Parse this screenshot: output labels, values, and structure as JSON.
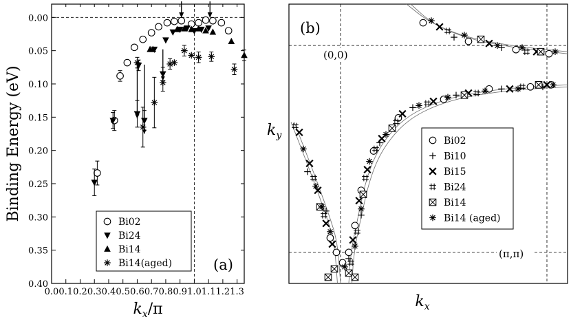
{
  "chart_data": [
    {
      "panel": "a",
      "type": "scatter",
      "panel_label": "(a)",
      "xlabel_main": "k",
      "xlabel_sub": "x",
      "xlabel_tail": "/π",
      "ylabel": "Binding Energy (eV)",
      "xlim": [
        0.0,
        1.35
      ],
      "ylim": [
        0.4,
        -0.02
      ],
      "x_ticks": [
        "0.0",
        "0.1",
        "0.2",
        "0.3",
        "0.4",
        "0.5",
        "0.6",
        "0.7",
        "0.8",
        "0.9",
        "1.0",
        "1.1",
        "1.2",
        "1.3"
      ],
      "y_ticks": [
        "0.00",
        "0.05",
        "0.10",
        "0.15",
        "0.20",
        "0.25",
        "0.30",
        "0.35",
        "0.40"
      ],
      "reference_lines": {
        "horizontal_y": 0.0,
        "vertical_x": 1.0
      },
      "arrows_at_x": [
        0.91,
        1.11
      ],
      "connectors": [
        {
          "x": 0.6,
          "y1": 0.071,
          "y2": 0.152
        },
        {
          "x": 0.65,
          "y1": 0.071,
          "y2": 0.175
        },
        {
          "x": 0.78,
          "y1": 0.048,
          "y2": 0.095
        }
      ],
      "legend": [
        "Bi02",
        "Bi24",
        "Bi14",
        "Bi14(aged)"
      ],
      "series": [
        {
          "name": "Bi02",
          "marker": "open-circle",
          "points": [
            [
              0.32,
              0.234
            ],
            [
              0.44,
              0.155
            ],
            [
              0.48,
              0.088
            ],
            [
              0.53,
              0.068
            ],
            [
              0.58,
              0.045
            ],
            [
              0.64,
              0.033
            ],
            [
              0.7,
              0.023
            ],
            [
              0.75,
              0.014
            ],
            [
              0.81,
              0.008
            ],
            [
              0.86,
              0.006
            ],
            [
              0.91,
              0.005
            ],
            [
              0.98,
              0.01
            ],
            [
              1.03,
              0.008
            ],
            [
              1.08,
              0.004
            ],
            [
              1.13,
              0.005
            ],
            [
              1.19,
              0.008
            ],
            [
              1.24,
              0.02
            ]
          ],
          "errors": [
            0.018,
            0.015,
            0.008,
            0,
            0,
            0,
            0,
            0,
            0,
            0,
            0,
            0,
            0,
            0,
            0,
            0,
            0
          ]
        },
        {
          "name": "Bi24",
          "marker": "down-triangle",
          "points": [
            [
              0.3,
              0.248
            ],
            [
              0.43,
              0.155
            ],
            [
              0.6,
              0.145
            ],
            [
              0.61,
              0.072
            ],
            [
              0.65,
              0.155
            ],
            [
              0.72,
              0.048
            ],
            [
              0.78,
              0.085
            ],
            [
              0.8,
              0.034
            ],
            [
              0.85,
              0.022
            ],
            [
              0.9,
              0.018
            ],
            [
              0.95,
              0.016
            ],
            [
              1.0,
              0.02
            ],
            [
              1.05,
              0.018
            ],
            [
              1.1,
              0.016
            ]
          ],
          "errors": [
            0.02,
            0.012,
            0.02,
            0.008,
            0.015,
            0,
            0.01,
            0,
            0,
            0,
            0,
            0,
            0,
            0
          ]
        },
        {
          "name": "Bi14",
          "marker": "up-triangle",
          "points": [
            [
              0.69,
              0.048
            ],
            [
              0.71,
              0.048
            ],
            [
              0.88,
              0.018
            ],
            [
              0.93,
              0.017
            ],
            [
              0.98,
              0.018
            ],
            [
              1.03,
              0.017
            ],
            [
              1.08,
              0.02
            ],
            [
              1.13,
              0.022
            ],
            [
              1.26,
              0.036
            ],
            [
              1.35,
              0.057
            ]
          ],
          "errors": [
            0,
            0,
            0,
            0,
            0,
            0,
            0,
            0,
            0,
            0.008
          ]
        },
        {
          "name": "Bi14(aged)",
          "marker": "asterisk",
          "points": [
            [
              0.6,
              0.068
            ],
            [
              0.64,
              0.165
            ],
            [
              0.72,
              0.128
            ],
            [
              0.78,
              0.098
            ],
            [
              0.83,
              0.07
            ],
            [
              0.86,
              0.068
            ],
            [
              0.93,
              0.05
            ],
            [
              0.98,
              0.057
            ],
            [
              1.03,
              0.06
            ],
            [
              1.12,
              0.059
            ],
            [
              1.28,
              0.078
            ]
          ],
          "errors": [
            0.008,
            0.03,
            0.038,
            0.013,
            0.008,
            0,
            0.008,
            0,
            0.008,
            0.007,
            0.008
          ]
        }
      ]
    },
    {
      "panel": "b",
      "type": "scatter",
      "panel_label": "(b)",
      "xlabel_main": "k",
      "xlabel_sub": "x",
      "ylabel_main": "k",
      "ylabel_sub": "y",
      "corner_labels": [
        "(0,0)",
        "(π,π)"
      ],
      "note": "Fermi surface map; axes run from (0,0) to (π,π) in units of π/a, no numeric ticks printed",
      "xlim": [
        -0.25,
        1.1
      ],
      "ylim": [
        -0.15,
        1.2
      ],
      "legend": [
        "Bi02",
        "Bi10",
        "Bi15",
        "Bi24",
        "Bi14",
        "Bi14 (aged)"
      ],
      "series": [
        {
          "name": "Bi02",
          "marker": "open-circle",
          "points": [
            [
              -0.05,
              0.07
            ],
            [
              -0.02,
              0.0
            ],
            [
              0.01,
              -0.05
            ],
            [
              0.04,
              0.0
            ],
            [
              0.07,
              0.13
            ],
            [
              0.1,
              0.3
            ],
            [
              0.16,
              0.49
            ],
            [
              0.28,
              0.65
            ],
            [
              0.5,
              0.74
            ],
            [
              0.72,
              0.79
            ],
            [
              0.92,
              0.8
            ],
            [
              1.02,
              0.81
            ],
            [
              0.4,
              1.11
            ],
            [
              0.62,
              1.02
            ],
            [
              0.85,
              0.98
            ],
            [
              1.01,
              0.96
            ]
          ]
        },
        {
          "name": "Bi10",
          "marker": "plus",
          "points": [
            [
              -0.16,
              0.39
            ],
            [
              -0.07,
              0.2
            ],
            [
              0.04,
              -0.03
            ],
            [
              0.1,
              0.18
            ],
            [
              0.19,
              0.53
            ],
            [
              0.35,
              0.7
            ],
            [
              0.56,
              0.76
            ],
            [
              0.78,
              0.79
            ],
            [
              0.98,
              0.8
            ],
            [
              0.55,
              1.04
            ],
            [
              0.78,
              0.99
            ]
          ]
        },
        {
          "name": "Bi15",
          "marker": "x",
          "points": [
            [
              -0.2,
              0.58
            ],
            [
              -0.15,
              0.43
            ],
            [
              -0.11,
              0.3
            ],
            [
              -0.07,
              0.14
            ],
            [
              -0.04,
              0.04
            ],
            [
              0.06,
              0.06
            ],
            [
              0.09,
              0.25
            ],
            [
              0.13,
              0.4
            ],
            [
              0.2,
              0.55
            ],
            [
              0.3,
              0.67
            ],
            [
              0.45,
              0.73
            ],
            [
              0.62,
              0.77
            ],
            [
              0.82,
              0.79
            ],
            [
              1.0,
              0.81
            ],
            [
              0.48,
              1.09
            ],
            [
              0.72,
              1.01
            ],
            [
              0.95,
              0.97
            ]
          ]
        },
        {
          "name": "Bi24",
          "marker": "hash",
          "points": [
            [
              -0.22,
              0.61
            ],
            [
              -0.13,
              0.36
            ],
            [
              -0.08,
              0.18
            ],
            [
              0.05,
              -0.05
            ],
            [
              0.08,
              0.1
            ],
            [
              0.12,
              0.36
            ],
            [
              0.17,
              0.5
            ],
            [
              0.27,
              0.63
            ],
            [
              0.42,
              0.72
            ],
            [
              0.66,
              0.77
            ],
            [
              0.88,
              0.8
            ],
            [
              0.52,
              1.07
            ],
            [
              0.9,
              0.97
            ]
          ]
        },
        {
          "name": "Bi14",
          "marker": "boxed-x",
          "points": [
            [
              -0.06,
              -0.12
            ],
            [
              -0.03,
              -0.08
            ],
            [
              0.04,
              -0.1
            ],
            [
              0.07,
              -0.12
            ],
            [
              -0.1,
              0.22
            ],
            [
              0.11,
              0.28
            ],
            [
              0.25,
              0.6
            ],
            [
              0.6,
              0.76
            ],
            [
              0.96,
              0.81
            ],
            [
              0.68,
              1.03
            ],
            [
              0.97,
              0.97
            ]
          ]
        },
        {
          "name": "Bi14 (aged)",
          "marker": "asterisk",
          "points": [
            [
              -0.18,
              0.5
            ],
            [
              -0.12,
              0.32
            ],
            [
              -0.09,
              0.22
            ],
            [
              -0.05,
              0.1
            ],
            [
              0.02,
              -0.07
            ],
            [
              0.07,
              0.03
            ],
            [
              0.1,
              0.21
            ],
            [
              0.14,
              0.44
            ],
            [
              0.22,
              0.57
            ],
            [
              0.38,
              0.71
            ],
            [
              0.52,
              0.75
            ],
            [
              0.7,
              0.78
            ],
            [
              0.86,
              0.79
            ],
            [
              1.03,
              0.81
            ],
            [
              0.44,
              1.12
            ],
            [
              0.6,
              1.05
            ],
            [
              0.76,
              1.0
            ],
            [
              0.88,
              0.99
            ],
            [
              1.04,
              0.97
            ]
          ]
        }
      ],
      "curves": [
        {
          "points": [
            [
              -0.24,
              0.63
            ],
            [
              -0.15,
              0.4
            ],
            [
              -0.07,
              0.18
            ],
            [
              -0.03,
              0.05
            ],
            [
              -0.015,
              -0.15
            ]
          ]
        },
        {
          "points": [
            [
              -0.225,
              0.63
            ],
            [
              -0.135,
              0.4
            ],
            [
              -0.055,
              0.18
            ],
            [
              -0.015,
              0.05
            ],
            [
              0.0,
              -0.15
            ]
          ]
        },
        {
          "points": [
            [
              0.04,
              -0.15
            ],
            [
              0.05,
              0.0
            ],
            [
              0.08,
              0.15
            ],
            [
              0.13,
              0.38
            ],
            [
              0.2,
              0.53
            ],
            [
              0.32,
              0.66
            ],
            [
              0.5,
              0.74
            ],
            [
              0.7,
              0.78
            ],
            [
              0.9,
              0.8
            ],
            [
              1.1,
              0.81
            ]
          ]
        },
        {
          "points": [
            [
              0.055,
              -0.15
            ],
            [
              0.065,
              0.0
            ],
            [
              0.095,
              0.15
            ],
            [
              0.145,
              0.37
            ],
            [
              0.215,
              0.52
            ],
            [
              0.335,
              0.65
            ],
            [
              0.51,
              0.73
            ],
            [
              0.71,
              0.77
            ],
            [
              0.91,
              0.79
            ],
            [
              1.1,
              0.8
            ]
          ]
        },
        {
          "points": [
            [
              0.32,
              1.2
            ],
            [
              0.42,
              1.12
            ],
            [
              0.55,
              1.06
            ],
            [
              0.7,
              1.02
            ],
            [
              0.9,
              0.99
            ],
            [
              1.1,
              0.97
            ]
          ]
        },
        {
          "points": [
            [
              0.34,
              1.2
            ],
            [
              0.44,
              1.11
            ],
            [
              0.57,
              1.05
            ],
            [
              0.72,
              1.01
            ],
            [
              0.92,
              0.98
            ],
            [
              1.1,
              0.96
            ]
          ]
        }
      ]
    }
  ]
}
